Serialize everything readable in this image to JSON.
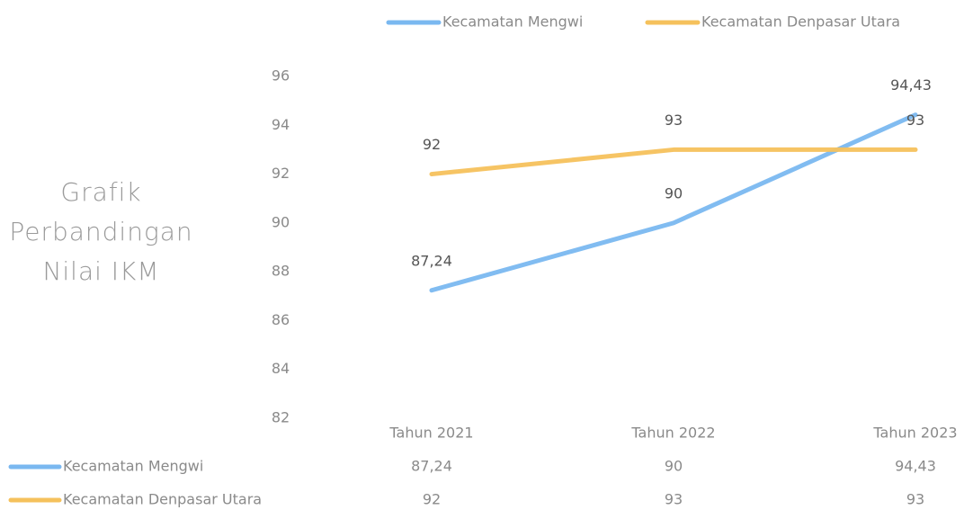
{
  "chart_data": {
    "type": "line",
    "title": "Grafik Perbandingan Nilai IKM",
    "categories": [
      "Tahun 2021",
      "Tahun 2022",
      "Tahun 2023"
    ],
    "series": [
      {
        "name": "Kecamatan Mengwi",
        "color": "#7ab8f0",
        "values": [
          87.24,
          90,
          94.43
        ],
        "value_labels": [
          "87,24",
          "90",
          "94,43"
        ]
      },
      {
        "name": "Kecamatan Denpasar Utara",
        "color": "#f5c15c",
        "values": [
          92,
          93,
          93
        ],
        "value_labels": [
          "92",
          "93",
          "93"
        ]
      }
    ],
    "ylim": [
      82,
      96
    ],
    "yticks": [
      82,
      84,
      86,
      88,
      90,
      92,
      94,
      96
    ],
    "grid": false,
    "legend": "top",
    "data_table": true
  }
}
